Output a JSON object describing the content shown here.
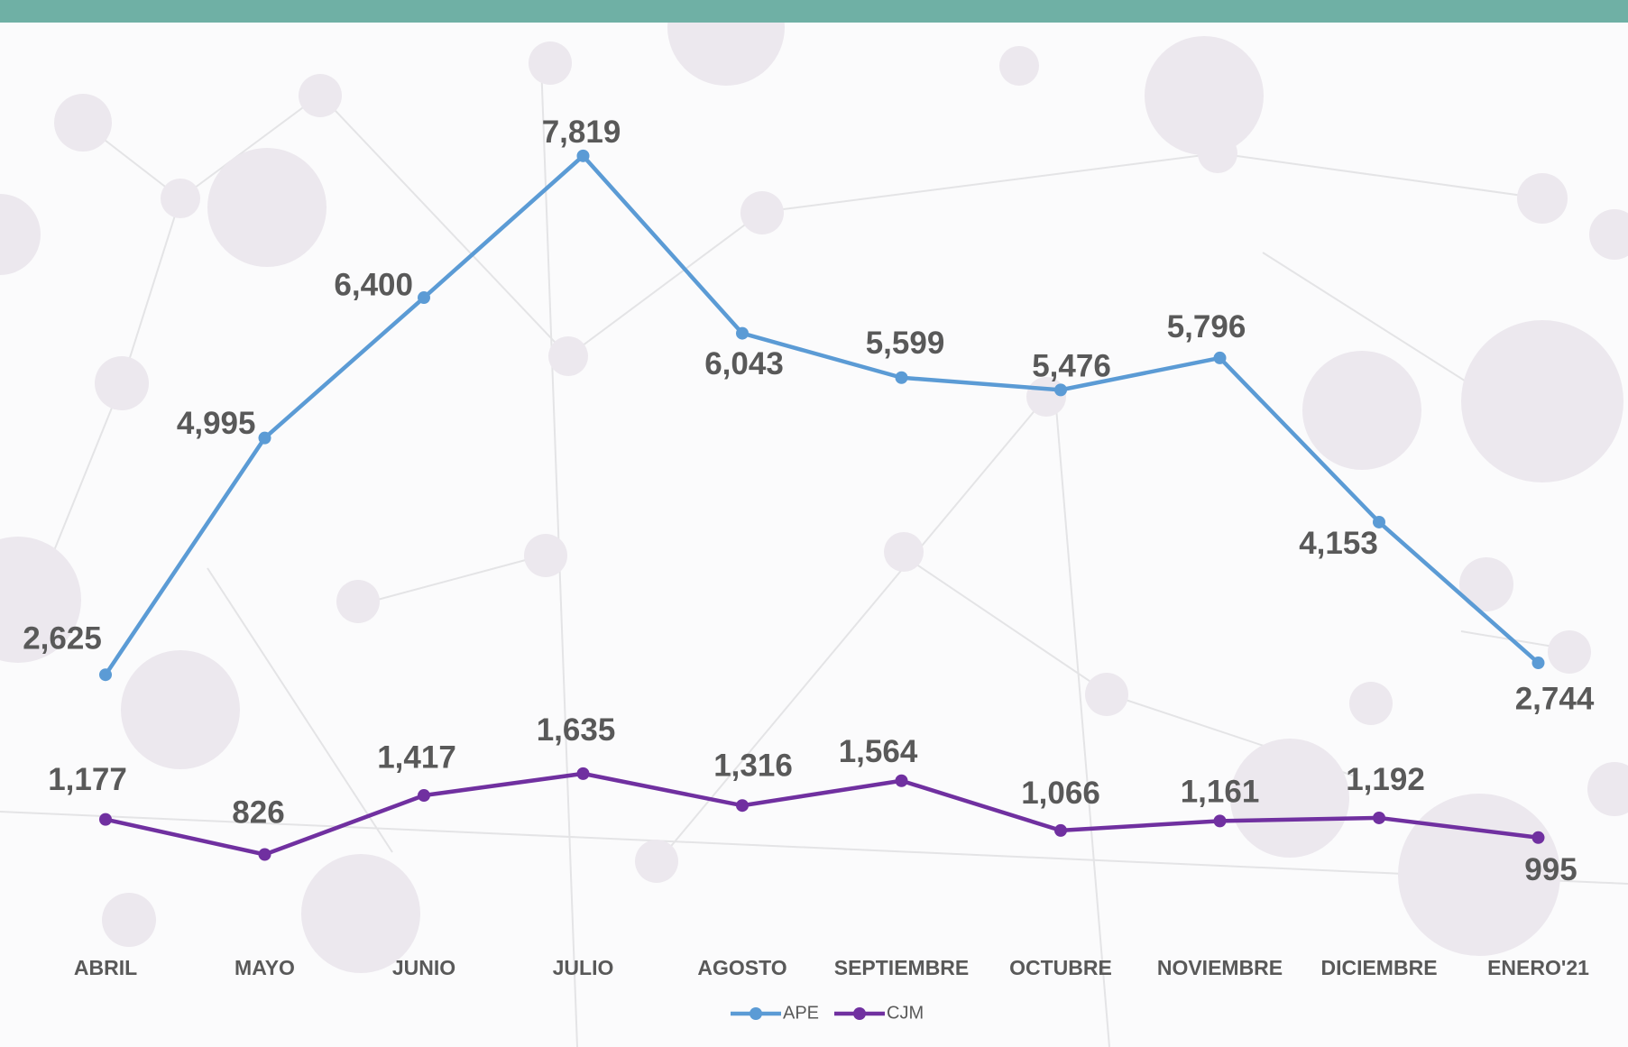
{
  "chart_data": {
    "type": "line",
    "categories": [
      "ABRIL",
      "MAYO",
      "JUNIO",
      "JULIO",
      "AGOSTO",
      "SEPTIEMBRE",
      "OCTUBRE",
      "NOVIEMBRE",
      "DICIEMBRE",
      "ENERO'21"
    ],
    "series": [
      {
        "name": "APE",
        "color": "#5b9bd5",
        "values": [
          2625,
          4995,
          6400,
          7819,
          6043,
          5599,
          5476,
          5796,
          4153,
          2744
        ],
        "value_labels": [
          "2,625",
          "4,995",
          "6,400",
          "7,819",
          "6,043",
          "5,599",
          "5,476",
          "5,796",
          "4,153",
          "2,744"
        ]
      },
      {
        "name": "CJM",
        "color": "#7030a0",
        "values": [
          1177,
          826,
          1417,
          1635,
          1316,
          1564,
          1066,
          1161,
          1192,
          995
        ],
        "value_labels": [
          "1,177",
          "826",
          "1,417",
          "1,635",
          "1,316",
          "1,564",
          "1,066",
          "1,161",
          "1,192",
          "995"
        ]
      }
    ],
    "ylim": [
      0,
      9000
    ],
    "legend": "bottom"
  }
}
